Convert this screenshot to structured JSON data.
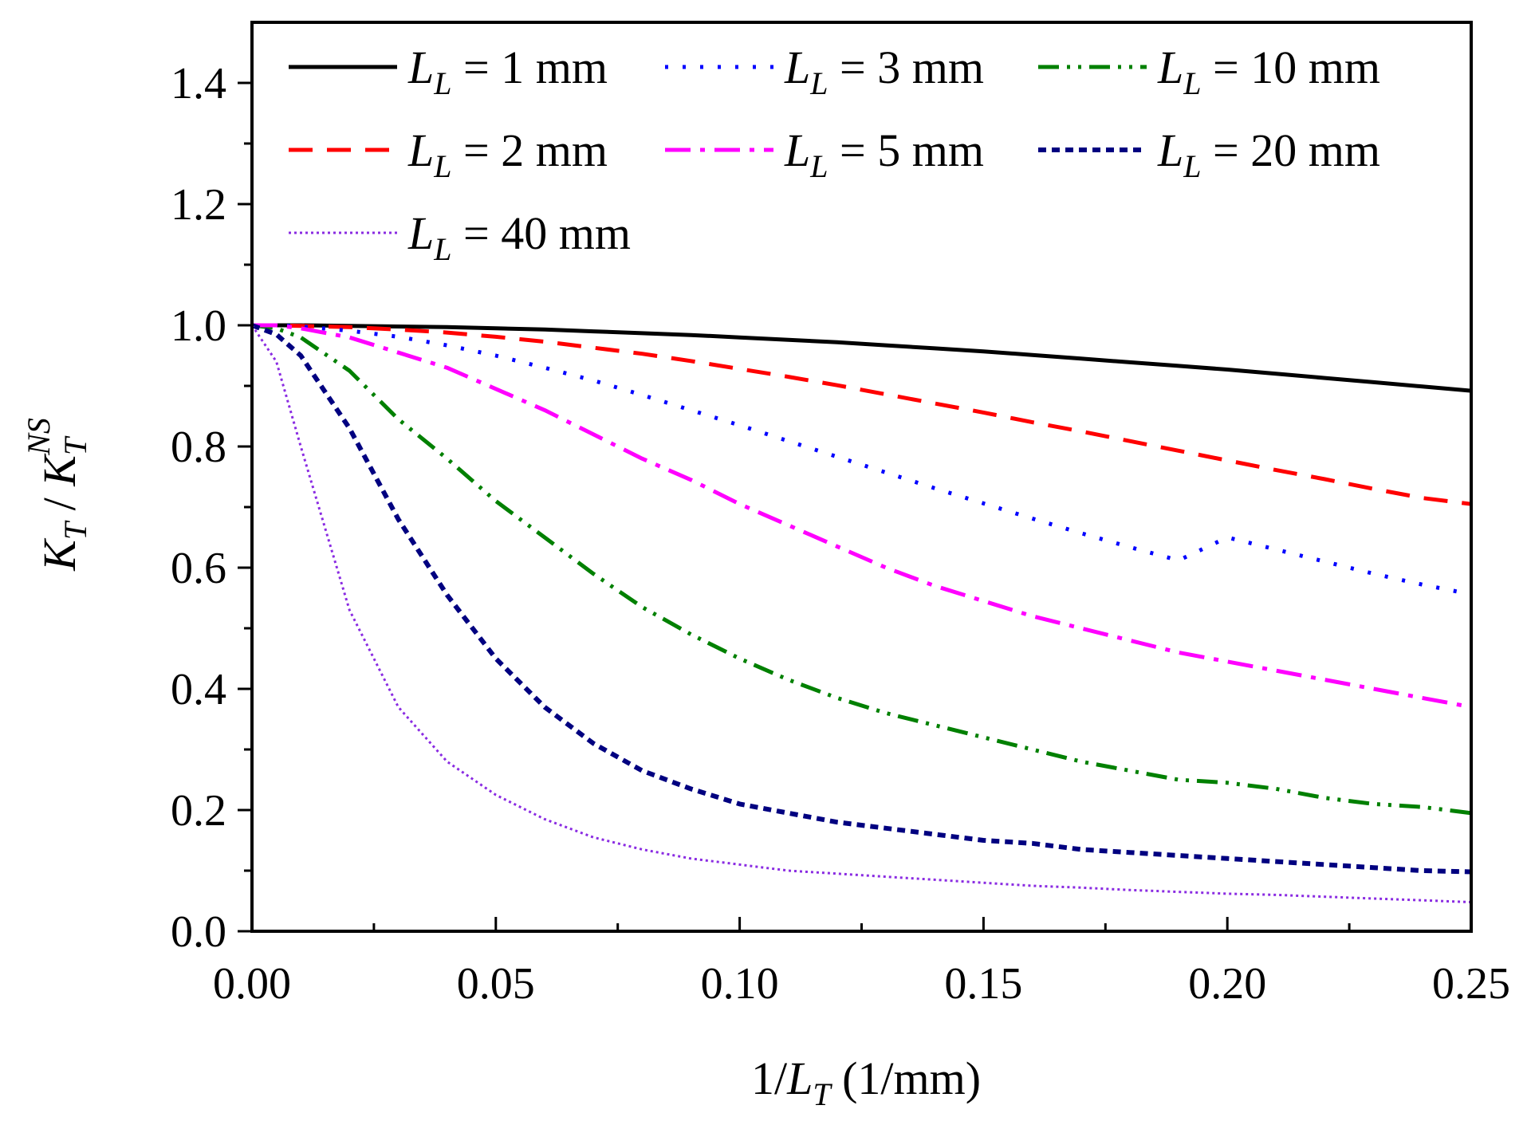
{
  "chart_data": {
    "type": "line",
    "title": "",
    "xlabel": {
      "prefix": "1/",
      "var": "L",
      "sub": "T",
      "suffix": " (1/mm)"
    },
    "ylabel": {
      "num_var": "K",
      "num_sub": "T",
      "slash": " / ",
      "den_var": "K",
      "den_sub": "T",
      "den_sup": "NS"
    },
    "xlim": [
      0,
      0.25
    ],
    "ylim": [
      0,
      1.5
    ],
    "x_ticks": [
      "0.00",
      "0.05",
      "0.10",
      "0.15",
      "0.20",
      "0.25"
    ],
    "x_tick_values": [
      0,
      0.05,
      0.1,
      0.15,
      0.2,
      0.25
    ],
    "y_ticks": [
      "0.0",
      "0.2",
      "0.4",
      "0.6",
      "0.8",
      "1.0",
      "1.2",
      "1.4"
    ],
    "y_tick_values": [
      0,
      0.2,
      0.4,
      0.6,
      0.8,
      1.0,
      1.2,
      1.4
    ],
    "legend_position": "top",
    "x": [
      0,
      0.005,
      0.01,
      0.02,
      0.03,
      0.04,
      0.05,
      0.06,
      0.07,
      0.08,
      0.09,
      0.1,
      0.11,
      0.12,
      0.13,
      0.14,
      0.15,
      0.16,
      0.17,
      0.18,
      0.19,
      0.2,
      0.21,
      0.22,
      0.23,
      0.24,
      0.25
    ],
    "series": [
      {
        "name": "L_L = 1 mm",
        "var": "L",
        "sub": "L",
        "eq": " = 1 mm",
        "color": "#000000",
        "dash": "none",
        "width": 5,
        "values": [
          1.0,
          1.0,
          1.0,
          0.999,
          0.998,
          0.997,
          0.995,
          0.993,
          0.99,
          0.987,
          0.984,
          0.98,
          0.976,
          0.972,
          0.967,
          0.962,
          0.957,
          0.951,
          0.945,
          0.939,
          0.933,
          0.927,
          0.92,
          0.913,
          0.906,
          0.899,
          0.892
        ]
      },
      {
        "name": "L_L = 2 mm",
        "var": "L",
        "sub": "L",
        "eq": " = 2 mm",
        "color": "#ff0000",
        "dash": "30,18",
        "width": 5,
        "values": [
          1.0,
          1.0,
          0.999,
          0.997,
          0.993,
          0.988,
          0.981,
          0.973,
          0.963,
          0.953,
          0.941,
          0.928,
          0.915,
          0.901,
          0.886,
          0.871,
          0.856,
          0.84,
          0.825,
          0.809,
          0.793,
          0.777,
          0.761,
          0.746,
          0.73,
          0.715,
          0.705
        ]
      },
      {
        "name": "L_L = 3 mm",
        "var": "L",
        "sub": "L",
        "eq": " = 3 mm",
        "color": "#0000ff",
        "dash": "4,18",
        "width": 5,
        "values": [
          1.0,
          1.0,
          0.998,
          0.991,
          0.981,
          0.967,
          0.95,
          0.93,
          0.909,
          0.885,
          0.86,
          0.835,
          0.809,
          0.783,
          0.757,
          0.731,
          0.706,
          0.681,
          0.657,
          0.634,
          0.612,
          0.65,
          0.63,
          0.61,
          0.59,
          0.572,
          0.556
        ]
      },
      {
        "name": "L_L = 10 mm",
        "var": "L",
        "sub": "L",
        "eq": " = 10 mm",
        "color": "#008000",
        "dash": "26,10,4,10,4,10",
        "width": 5,
        "values": [
          1.0,
          0.995,
          0.98,
          0.925,
          0.845,
          0.78,
          0.71,
          0.65,
          0.59,
          0.535,
          0.49,
          0.45,
          0.415,
          0.385,
          0.36,
          0.34,
          0.32,
          0.3,
          0.28,
          0.265,
          0.25,
          0.245,
          0.235,
          0.22,
          0.21,
          0.205,
          0.195
        ]
      },
      {
        "name": "L_L = 5 mm",
        "var": "L",
        "sub": "L",
        "eq": " = 5 mm",
        "color": "#ff00ff",
        "dash": "32,12,6,12",
        "width": 5,
        "values": [
          1.0,
          1.0,
          0.995,
          0.98,
          0.955,
          0.93,
          0.895,
          0.86,
          0.82,
          0.78,
          0.745,
          0.705,
          0.67,
          0.635,
          0.6,
          0.57,
          0.545,
          0.52,
          0.5,
          0.48,
          0.46,
          0.445,
          0.43,
          0.415,
          0.4,
          0.385,
          0.37
        ]
      },
      {
        "name": "L_L = 20 mm",
        "var": "L",
        "sub": "L",
        "eq": " = 20 mm",
        "color": "#000080",
        "dash": "10,7",
        "width": 6,
        "values": [
          1.0,
          0.985,
          0.95,
          0.83,
          0.68,
          0.555,
          0.45,
          0.37,
          0.31,
          0.265,
          0.235,
          0.21,
          0.195,
          0.18,
          0.17,
          0.16,
          0.15,
          0.145,
          0.135,
          0.13,
          0.125,
          0.12,
          0.115,
          0.11,
          0.105,
          0.1,
          0.098
        ]
      },
      {
        "name": "L_L = 40 mm",
        "var": "L",
        "sub": "L",
        "eq": " = 40 mm",
        "color": "#8a2be2",
        "dash": "3,4",
        "width": 3,
        "values": [
          1.0,
          0.94,
          0.8,
          0.53,
          0.37,
          0.28,
          0.225,
          0.185,
          0.155,
          0.135,
          0.12,
          0.11,
          0.1,
          0.095,
          0.09,
          0.085,
          0.08,
          0.075,
          0.072,
          0.068,
          0.065,
          0.062,
          0.06,
          0.057,
          0.054,
          0.051,
          0.048
        ]
      }
    ]
  }
}
